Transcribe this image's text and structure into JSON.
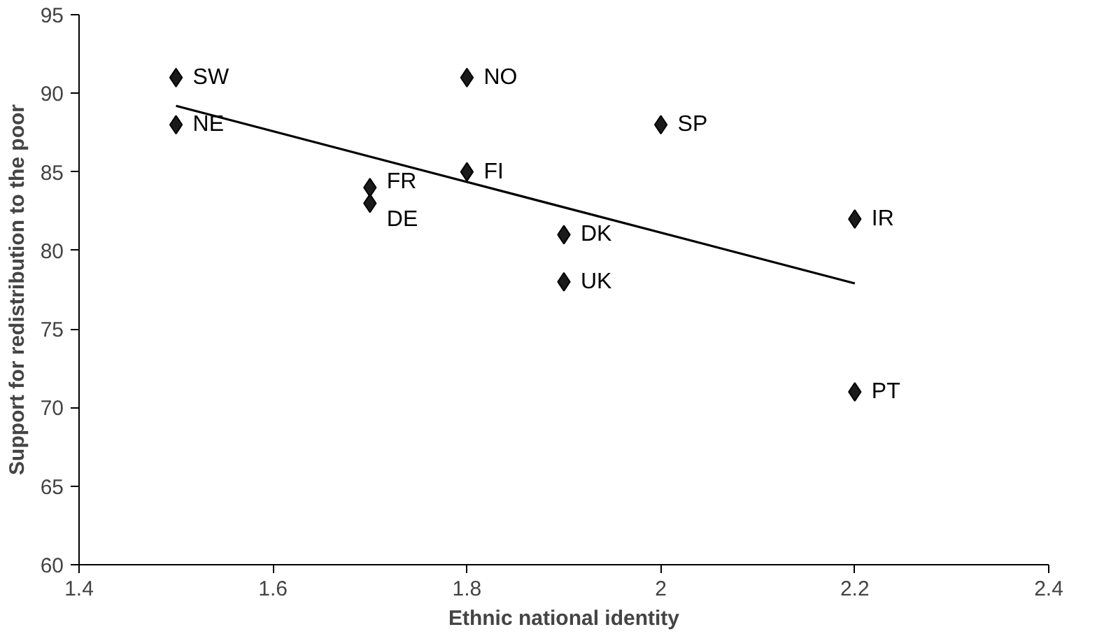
{
  "chart_data": {
    "type": "scatter",
    "xlabel": "Ethnic national identity",
    "ylabel": "Support for redistribution to the poor",
    "xlim": [
      1.4,
      2.4
    ],
    "xticks": [
      1.4,
      1.6,
      1.8,
      2,
      2.2,
      2.4
    ],
    "ylim": [
      60,
      95
    ],
    "yticks": [
      60,
      65,
      70,
      75,
      80,
      85,
      90,
      95
    ],
    "grid": false,
    "series": [
      {
        "marker": "diamond",
        "color": "#1a1a1a",
        "x": [
          1.5,
          1.5,
          1.8,
          2.0,
          1.8,
          1.7,
          1.7,
          1.9,
          1.9,
          2.2,
          2.2
        ],
        "values": [
          91,
          88,
          91,
          88,
          85,
          84,
          83,
          81,
          78,
          82,
          71
        ]
      },
      {
        "type": "line",
        "color": "#000000",
        "x": [
          1.5,
          2.2
        ],
        "values": [
          89.2,
          77.9
        ],
        "line_style": "solid"
      }
    ],
    "annotations": [
      {
        "text": "SW",
        "x": 1.5,
        "y": 91
      },
      {
        "text": "NE",
        "x": 1.5,
        "y": 88
      },
      {
        "text": "NO",
        "x": 1.8,
        "y": 91
      },
      {
        "text": "SP",
        "x": 2.0,
        "y": 88
      },
      {
        "text": "FI",
        "x": 1.8,
        "y": 85
      },
      {
        "text": "FR",
        "x": 1.7,
        "y": 84
      },
      {
        "text": "DE",
        "x": 1.7,
        "y": 83
      },
      {
        "text": "DK",
        "x": 1.9,
        "y": 81
      },
      {
        "text": "UK",
        "x": 1.9,
        "y": 78
      },
      {
        "text": "IR",
        "x": 2.2,
        "y": 82
      },
      {
        "text": "PT",
        "x": 2.2,
        "y": 71
      }
    ]
  }
}
